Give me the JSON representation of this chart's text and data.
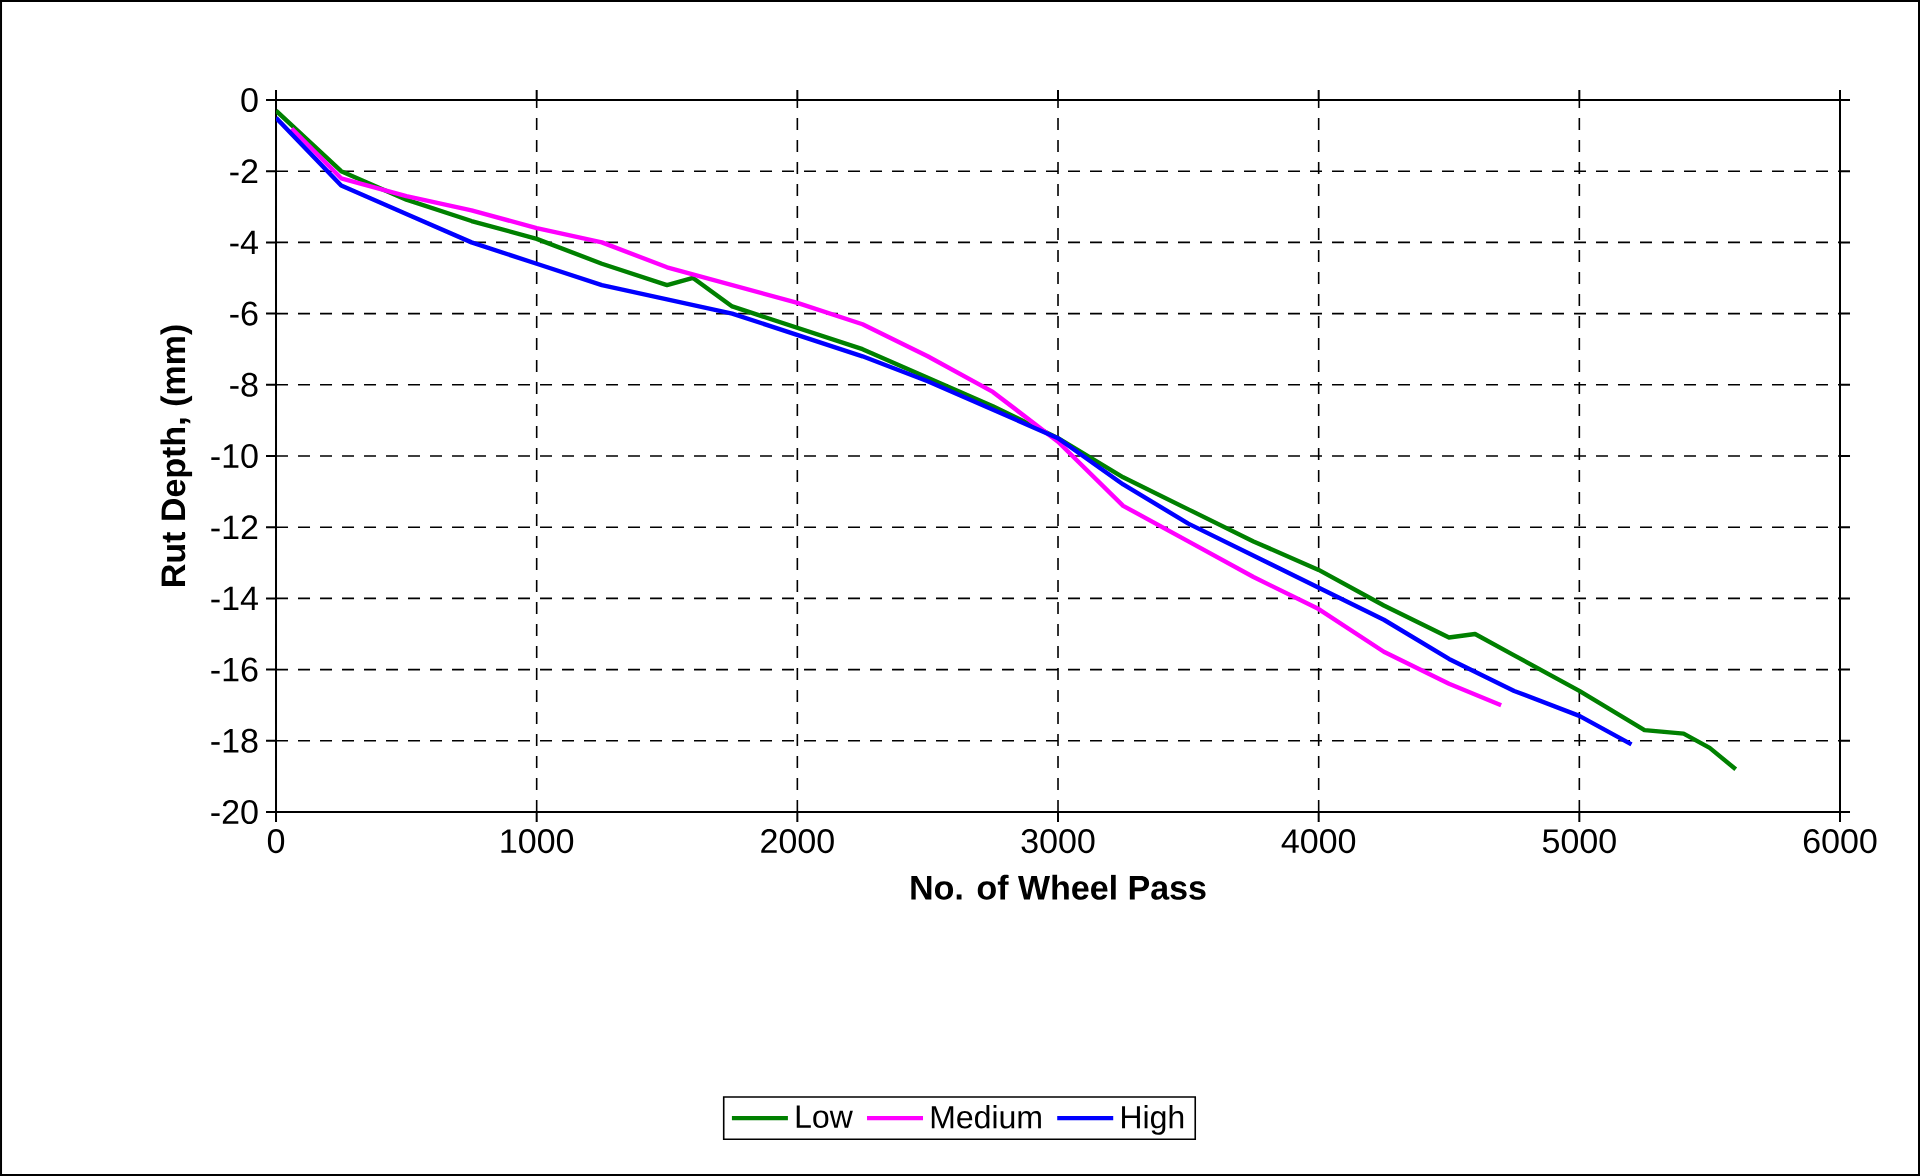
{
  "chart_data": {
    "type": "line",
    "xlabel": "No. of Wheel Pass",
    "ylabel": "Rut Depth, (mm)",
    "xlim": [
      0,
      6000
    ],
    "ylim": [
      -20,
      0
    ],
    "xticks": [
      0,
      1000,
      2000,
      3000,
      4000,
      5000,
      6000
    ],
    "yticks": [
      -20,
      -18,
      -16,
      -14,
      -12,
      -10,
      -8,
      -6,
      -4,
      -2,
      0
    ],
    "grid": true,
    "legend": "bottom",
    "marker": "none",
    "line_style": "solid",
    "series": [
      {
        "name": "Low",
        "color": "#008000",
        "x": [
          0,
          250,
          500,
          750,
          1000,
          1250,
          1500,
          1600,
          1750,
          2000,
          2250,
          2500,
          2750,
          3000,
          3250,
          3500,
          3750,
          4000,
          4250,
          4500,
          4600,
          4750,
          5000,
          5250,
          5400,
          5500,
          5600
        ],
        "values": [
          -0.3,
          -2.0,
          -2.8,
          -3.4,
          -3.9,
          -4.6,
          -5.2,
          -5.0,
          -5.8,
          -6.4,
          -7.0,
          -7.8,
          -8.6,
          -9.5,
          -10.6,
          -11.5,
          -12.4,
          -13.2,
          -14.2,
          -15.1,
          -15.0,
          -15.6,
          -16.6,
          -17.7,
          -17.8,
          -18.2,
          -18.8
        ]
      },
      {
        "name": "Medium",
        "color": "#ff00ff",
        "x": [
          60,
          250,
          500,
          750,
          1000,
          1250,
          1500,
          1750,
          2000,
          2250,
          2500,
          2750,
          3000,
          3250,
          3500,
          3750,
          4000,
          4250,
          4500,
          4700
        ],
        "values": [
          -0.8,
          -2.2,
          -2.7,
          -3.1,
          -3.6,
          -4.0,
          -4.7,
          -5.2,
          -5.7,
          -6.3,
          -7.2,
          -8.2,
          -9.6,
          -11.4,
          -12.4,
          -13.4,
          -14.3,
          -15.5,
          -16.4,
          -17.0
        ]
      },
      {
        "name": "High",
        "color": "#0000ff",
        "x": [
          0,
          250,
          500,
          750,
          1000,
          1250,
          1500,
          1750,
          2000,
          2250,
          2500,
          2750,
          3000,
          3250,
          3500,
          3750,
          4000,
          4250,
          4500,
          4750,
          5000,
          5200
        ],
        "values": [
          -0.5,
          -2.4,
          -3.2,
          -4.0,
          -4.6,
          -5.2,
          -5.6,
          -6.0,
          -6.6,
          -7.2,
          -7.9,
          -8.7,
          -9.5,
          -10.8,
          -11.9,
          -12.8,
          -13.7,
          -14.6,
          -15.7,
          -16.6,
          -17.3,
          -18.1
        ]
      }
    ]
  }
}
